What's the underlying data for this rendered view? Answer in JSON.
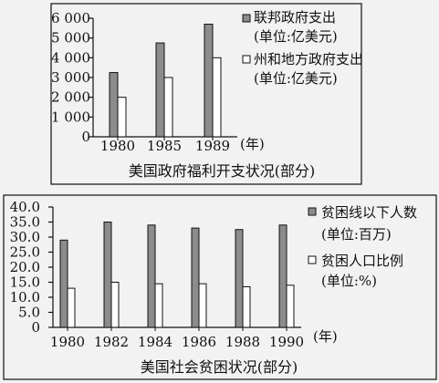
{
  "chart_data": [
    {
      "type": "bar",
      "title": "美国政府福利开支状况(部分)",
      "categories": [
        "1980",
        "1985",
        "1989"
      ],
      "x_unit": "(年)",
      "yticks": [
        "0",
        "1 000",
        "2 000",
        "3 000",
        "4 000",
        "5 000",
        "6 000"
      ],
      "ylim": [
        0,
        6000
      ],
      "series": [
        {
          "name": "联邦政府支出",
          "unit": "(单位:亿美元)",
          "fill": "#8c8c8c",
          "values": [
            3250,
            4750,
            5700
          ]
        },
        {
          "name": "州和地方政府支出",
          "unit": "(单位:亿美元)",
          "fill": "#ffffff",
          "values": [
            2000,
            3000,
            4000
          ]
        }
      ],
      "legend": "right"
    },
    {
      "type": "bar",
      "title": "美国社会贫困状况(部分)",
      "categories": [
        "1980",
        "1982",
        "1984",
        "1986",
        "1988",
        "1990"
      ],
      "x_unit": "(年)",
      "yticks": [
        "0",
        "5.0",
        "10.0",
        "15.0",
        "20.0",
        "25.0",
        "30.0",
        "35.0",
        "40.0"
      ],
      "ylim": [
        0,
        40
      ],
      "series": [
        {
          "name": "贫困线以下人数",
          "unit": "(单位:百万)",
          "fill": "#8c8c8c",
          "values": [
            29.0,
            35.0,
            34.0,
            33.0,
            32.5,
            34.0
          ]
        },
        {
          "name": "贫困人口比例",
          "unit": "(单位:%)",
          "fill": "#ffffff",
          "values": [
            13.0,
            15.0,
            14.5,
            14.5,
            13.5,
            14.0
          ]
        }
      ],
      "legend": "right"
    }
  ]
}
